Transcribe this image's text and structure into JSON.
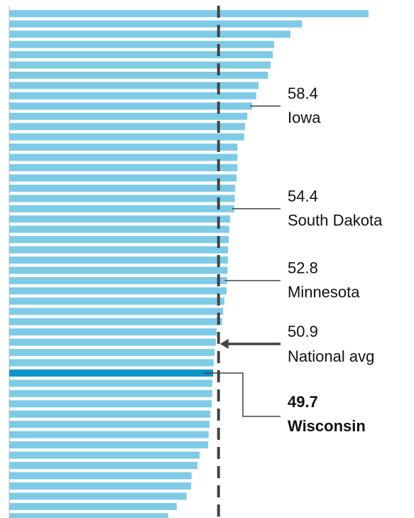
{
  "chart_data": {
    "type": "bar",
    "orientation": "horizontal",
    "categories": [
      null,
      null,
      null,
      null,
      null,
      null,
      null,
      null,
      null,
      "Iowa",
      null,
      null,
      null,
      null,
      null,
      null,
      null,
      null,
      null,
      "South Dakota",
      null,
      null,
      null,
      null,
      null,
      null,
      "Minnesota",
      null,
      null,
      null,
      null,
      null,
      null,
      null,
      null,
      "Wisconsin",
      null,
      null,
      null,
      null,
      null,
      null,
      null,
      null,
      null,
      null,
      null,
      null,
      null,
      null
    ],
    "values": [
      84.3,
      69.5,
      66.9,
      63.3,
      63.0,
      62.5,
      61.9,
      59.8,
      59.3,
      58.4,
      57.3,
      56.8,
      56.6,
      55.1,
      55.1,
      55.1,
      54.9,
      54.6,
      54.5,
      54.4,
      53.5,
      53.3,
      53.2,
      53.0,
      53.0,
      52.9,
      52.8,
      52.7,
      52.2,
      51.9,
      51.7,
      50.5,
      50.3,
      50.0,
      49.8,
      49.7,
      49.5,
      49.5,
      49.4,
      49.1,
      48.9,
      48.7,
      48.6,
      46.7,
      46.2,
      44.9,
      44.8,
      43.8,
      41.6,
      39.7
    ],
    "color": "#7ecbe6",
    "highlight_category": "Wisconsin",
    "highlight_color": "#0a96c8",
    "xlim": [
      4.3,
      84.3
    ],
    "reference_line": {
      "value": 50.9,
      "label": "National avg",
      "color": "#444444"
    }
  }
}
